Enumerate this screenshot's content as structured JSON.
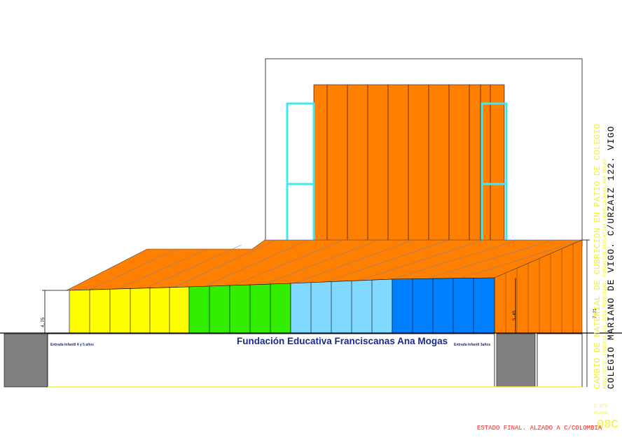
{
  "banner": {
    "title": "Fundación Educativa Franciscanas Ana Mogas",
    "label_left": "Entrada Infantil 4 y 5 años",
    "label_right": "Entrada Infantil 3años"
  },
  "dimensions": {
    "left_height": "4,75",
    "middle_height": "5,45",
    "right_height": "7,21"
  },
  "title_block": {
    "line1": "CAMBIO DE MATERIAL DE CUBRICION EN PATIO DE COLEGIO",
    "line2": "ARQUITECTO: ERNESTO GIL SUSO PROPIEDAD: FUNDACION EDUCATIVA FRANCISCANAS ANA MOGAS",
    "line3": "COLEGIO MARIANO DE VIGO. C/URZAIZ 122. VIGO",
    "scale": "E: 1/75",
    "plano_label": "PLANO",
    "plano_number": "08C",
    "caption": "ESTADO FINAL. ALZADO A C/COLOMBIA"
  },
  "colors": {
    "roof_orange": "#ff7f00",
    "yellow": "#ffff00",
    "green": "#33ee00",
    "light_blue": "#80d8ff",
    "blue": "#0080ff",
    "cyan_frame": "#40e8f0",
    "title_yellow": "#f0f040",
    "caption_red": "#ff2020",
    "wall_grey": "#808080"
  }
}
